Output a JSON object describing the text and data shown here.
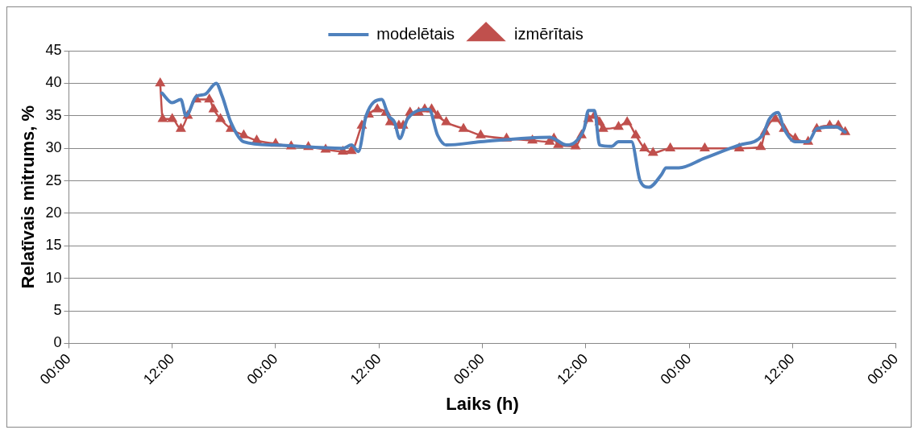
{
  "chart_data": {
    "type": "line",
    "xlabel": "Laiks (h)",
    "ylabel": "Relatīvais mitrums, %",
    "legend": "top",
    "grid": "y",
    "xlim": [
      "--01-01T00:00",
      "--01-05T00:00"
    ],
    "ylim": [
      0,
      45
    ],
    "xticks": [
      {
        "value": "--01-01T00:00",
        "label": "00:00"
      },
      {
        "value": "--01-01T12:00",
        "label": "12:00"
      },
      {
        "value": "--01-02T00:00",
        "label": "00:00"
      },
      {
        "value": "--01-02T12:00",
        "label": "12:00"
      },
      {
        "value": "--01-03T00:00",
        "label": "00:00"
      },
      {
        "value": "--01-03T12:00",
        "label": "12:00"
      },
      {
        "value": "--01-04T00:00",
        "label": "00:00"
      },
      {
        "value": "--01-04T12:00",
        "label": "12:00"
      },
      {
        "value": "--01-05T00:00",
        "label": "00:00"
      }
    ],
    "yticks": [
      0,
      5,
      10,
      15,
      20,
      25,
      30,
      35,
      40,
      45
    ],
    "series": [
      {
        "name": "modelētais",
        "color": "#4f81bd",
        "marker": "none",
        "x": [
          "--01-01T10:48",
          "--01-01T12:00",
          "--01-01T13:00",
          "--01-01T13:36",
          "--01-01T14:48",
          "--01-01T15:48",
          "--01-01T17:06",
          "--01-01T17:48",
          "--01-01T18:48",
          "--01-01T20:18",
          "--01-01T23:48",
          "--01-02T07:48",
          "--01-02T08:48",
          "--01-02T09:36",
          "--01-02T10:30",
          "--01-02T12:18",
          "--01-02T13:06",
          "--01-02T13:48",
          "--01-02T14:24",
          "--01-02T15:18",
          "--01-02T17:48",
          "--01-02T18:48",
          "--01-02T19:48",
          "--01-02T23:48",
          "--01-03T07:48",
          "--01-03T09:48",
          "--01-03T10:48",
          "--01-03T11:48",
          "--01-03T12:18",
          "--01-03T13:00",
          "--01-03T13:36",
          "--01-03T15:00",
          "--01-03T15:48",
          "--01-03T17:18",
          "--01-03T18:18",
          "--01-03T19:18",
          "--01-03T20:48",
          "--01-03T21:18",
          "--01-03T22:48",
          "--01-04T01:48",
          "--01-04T05:48",
          "--01-04T08:30",
          "--01-04T09:18",
          "--01-04T10:18",
          "--01-04T11:00",
          "--01-04T12:18",
          "--01-04T13:48",
          "--01-04T14:48",
          "--01-04T17:00",
          "--01-04T18:06"
        ],
        "values": [
          38.5,
          37,
          37.5,
          35,
          38,
          38.3,
          40,
          38,
          34,
          31,
          30.5,
          30,
          30.5,
          29.5,
          35,
          37.5,
          35,
          34,
          31.5,
          34.5,
          36,
          32,
          30.5,
          31,
          31.7,
          30.5,
          31,
          33,
          35.8,
          35.8,
          30.5,
          30.3,
          31,
          31,
          25,
          24,
          26,
          27,
          27,
          28.5,
          30.5,
          32,
          34.5,
          35.5,
          33,
          31,
          31,
          33,
          33.3,
          32.5
        ]
      },
      {
        "name": "izmērītais",
        "color": "#c0504d",
        "marker": "triangle",
        "x": [
          "--01-01T10:36",
          "--01-01T10:54",
          "--01-01T12:00",
          "--01-01T13:00",
          "--01-01T13:48",
          "--01-01T14:48",
          "--01-01T16:18",
          "--01-01T16:48",
          "--01-01T17:36",
          "--01-01T18:48",
          "--01-01T20:18",
          "--01-01T21:48",
          "--01-02T00:00",
          "--01-02T01:48",
          "--01-02T03:48",
          "--01-02T05:48",
          "--01-02T07:48",
          "--01-02T08:48",
          "--01-02T10:00",
          "--01-02T10:48",
          "--01-02T11:48",
          "--01-02T12:48",
          "--01-02T13:18",
          "--01-02T14:18",
          "--01-02T14:48",
          "--01-02T15:36",
          "--01-02T16:36",
          "--01-02T17:18",
          "--01-02T18:06",
          "--01-02T18:48",
          "--01-02T19:48",
          "--01-02T21:48",
          "--01-02T23:48",
          "--01-03T02:48",
          "--01-03T05:48",
          "--01-03T07:48",
          "--01-03T08:18",
          "--01-03T08:48",
          "--01-03T10:48",
          "--01-03T11:30",
          "--01-03T12:18",
          "--01-03T13:00",
          "--01-03T13:36",
          "--01-03T14:00",
          "--01-03T15:48",
          "--01-03T16:48",
          "--01-03T17:48",
          "--01-03T18:48",
          "--01-03T19:48",
          "--01-03T21:48",
          "--01-04T01:48",
          "--01-04T05:48",
          "--01-04T08:18",
          "--01-04T08:48",
          "--01-04T10:00",
          "--01-04T11:00",
          "--01-04T12:18",
          "--01-04T13:48",
          "--01-04T14:48",
          "--01-04T16:18",
          "--01-04T17:18",
          "--01-04T18:06"
        ],
        "values": [
          40,
          34.5,
          34.5,
          33,
          35,
          37.5,
          37.5,
          36,
          34.5,
          33,
          32,
          31.2,
          30.7,
          30.3,
          30.2,
          29.8,
          29.5,
          29.6,
          33.5,
          35.2,
          36,
          35.5,
          34,
          33.5,
          33.5,
          35.5,
          35.5,
          36,
          36,
          35,
          34,
          33,
          32,
          31.5,
          31.2,
          31,
          31.5,
          30.5,
          30.3,
          32,
          34.5,
          35,
          34,
          33,
          33.3,
          34,
          32,
          30,
          29.3,
          30,
          30,
          30,
          30.2,
          32.5,
          34.5,
          33,
          31.5,
          31,
          33,
          33.5,
          33.5,
          32.5
        ]
      }
    ]
  }
}
